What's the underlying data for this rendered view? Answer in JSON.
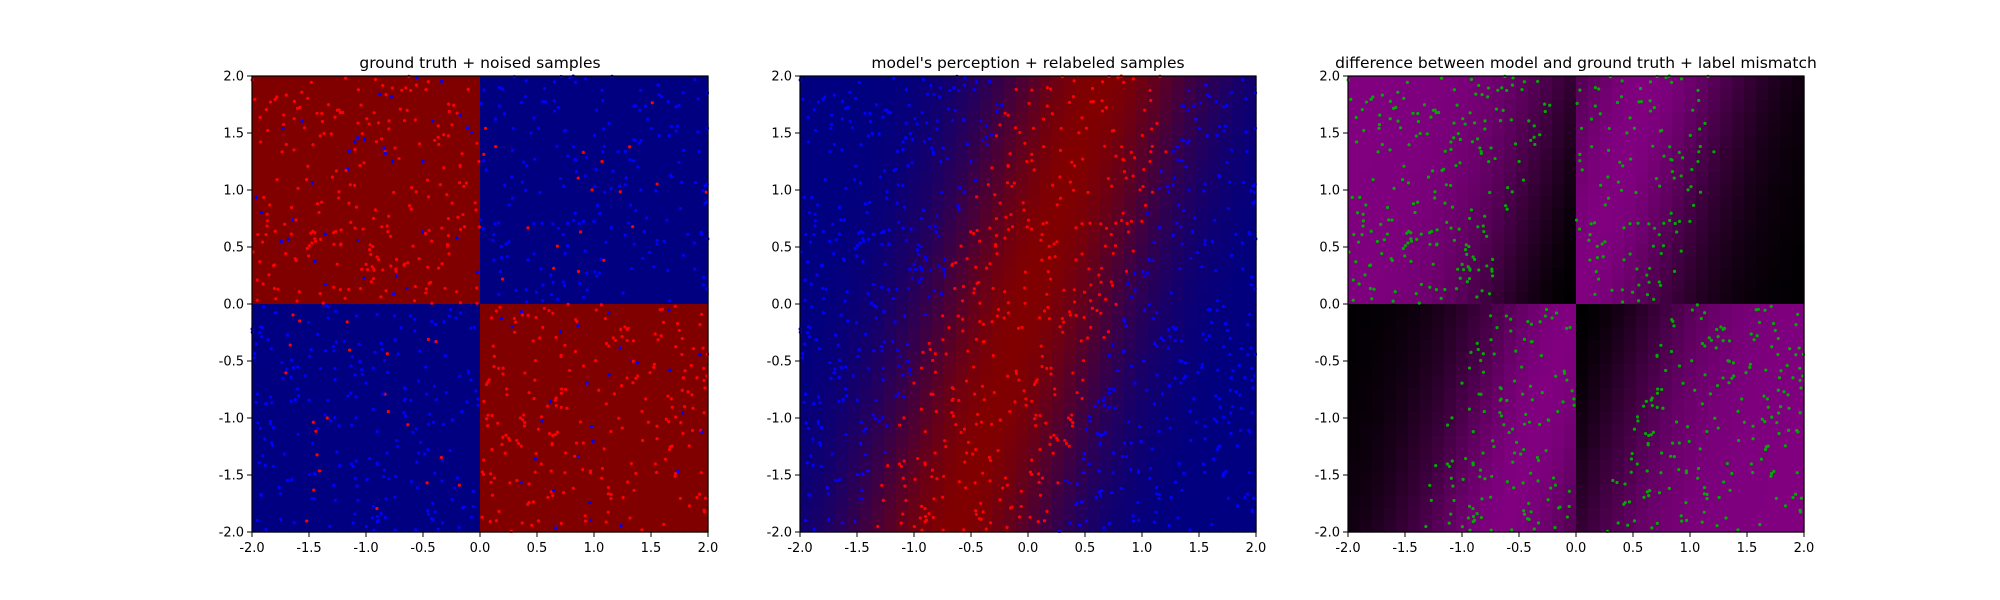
{
  "chart_data": [
    {
      "type": "heatmap",
      "title": "ground truth + noised samples",
      "xlim": [
        -2.0,
        2.0
      ],
      "ylim": [
        -2.0,
        2.0
      ],
      "xticks": [
        "-2.0",
        "-1.5",
        "-1.0",
        "-0.5",
        "0.0",
        "0.5",
        "1.0",
        "1.5",
        "2.0"
      ],
      "yticks": [
        "-2.0",
        "-1.5",
        "-1.0",
        "-0.5",
        "0.0",
        "0.5",
        "1.0",
        "1.5",
        "2.0"
      ],
      "background": "ground truth label field: red where x*y<0, blue where x*y>0",
      "colors": {
        "class_a": "#800000",
        "class_b": "#000080",
        "point_a": "#ff0000",
        "point_b": "#0000ff"
      },
      "samples": "about 1000 uniform samples on [-2,2]x[-2,2], colored by noised label",
      "grid": false,
      "legend": "none"
    },
    {
      "type": "heatmap",
      "title": "model's perception + relabeled samples",
      "xlim": [
        -2.0,
        2.0
      ],
      "ylim": [
        -2.0,
        2.0
      ],
      "xticks": [
        "-2.0",
        "-1.5",
        "-1.0",
        "-0.5",
        "0.0",
        "0.5",
        "1.0",
        "1.5",
        "2.0"
      ],
      "yticks": [
        "-2.0",
        "-1.5",
        "-1.0",
        "-0.5",
        "0.0",
        "0.5",
        "1.0",
        "1.5",
        "2.0"
      ],
      "background": "model prediction: red diagonal band through the origin (lower-left to upper-right, slightly tilted), blue on both sides",
      "colors": {
        "class_a": "#800000",
        "class_b": "#000080",
        "point_a": "#ff0000",
        "point_b": "#0000ff"
      },
      "samples": "same sample locations, colored by model label",
      "grid": false,
      "legend": "none"
    },
    {
      "type": "heatmap",
      "title": "difference between model and ground truth + label mismatch",
      "xlim": [
        -2.0,
        2.0
      ],
      "ylim": [
        -2.0,
        2.0
      ],
      "xticks": [
        "-2.0",
        "-1.5",
        "-1.0",
        "-0.5",
        "0.0",
        "0.5",
        "1.0",
        "1.5",
        "2.0"
      ],
      "yticks": [
        "-2.0",
        "-1.5",
        "-1.0",
        "-0.5",
        "0.0",
        "0.5",
        "1.0",
        "1.5",
        "2.0"
      ],
      "background": "absolute difference map: black (0) to purple (1)",
      "colors": {
        "low": "#000000",
        "high": "#800080",
        "point": "#00aa00"
      },
      "samples": "green points where model label differs from ground truth",
      "grid": false,
      "legend": "none"
    }
  ]
}
